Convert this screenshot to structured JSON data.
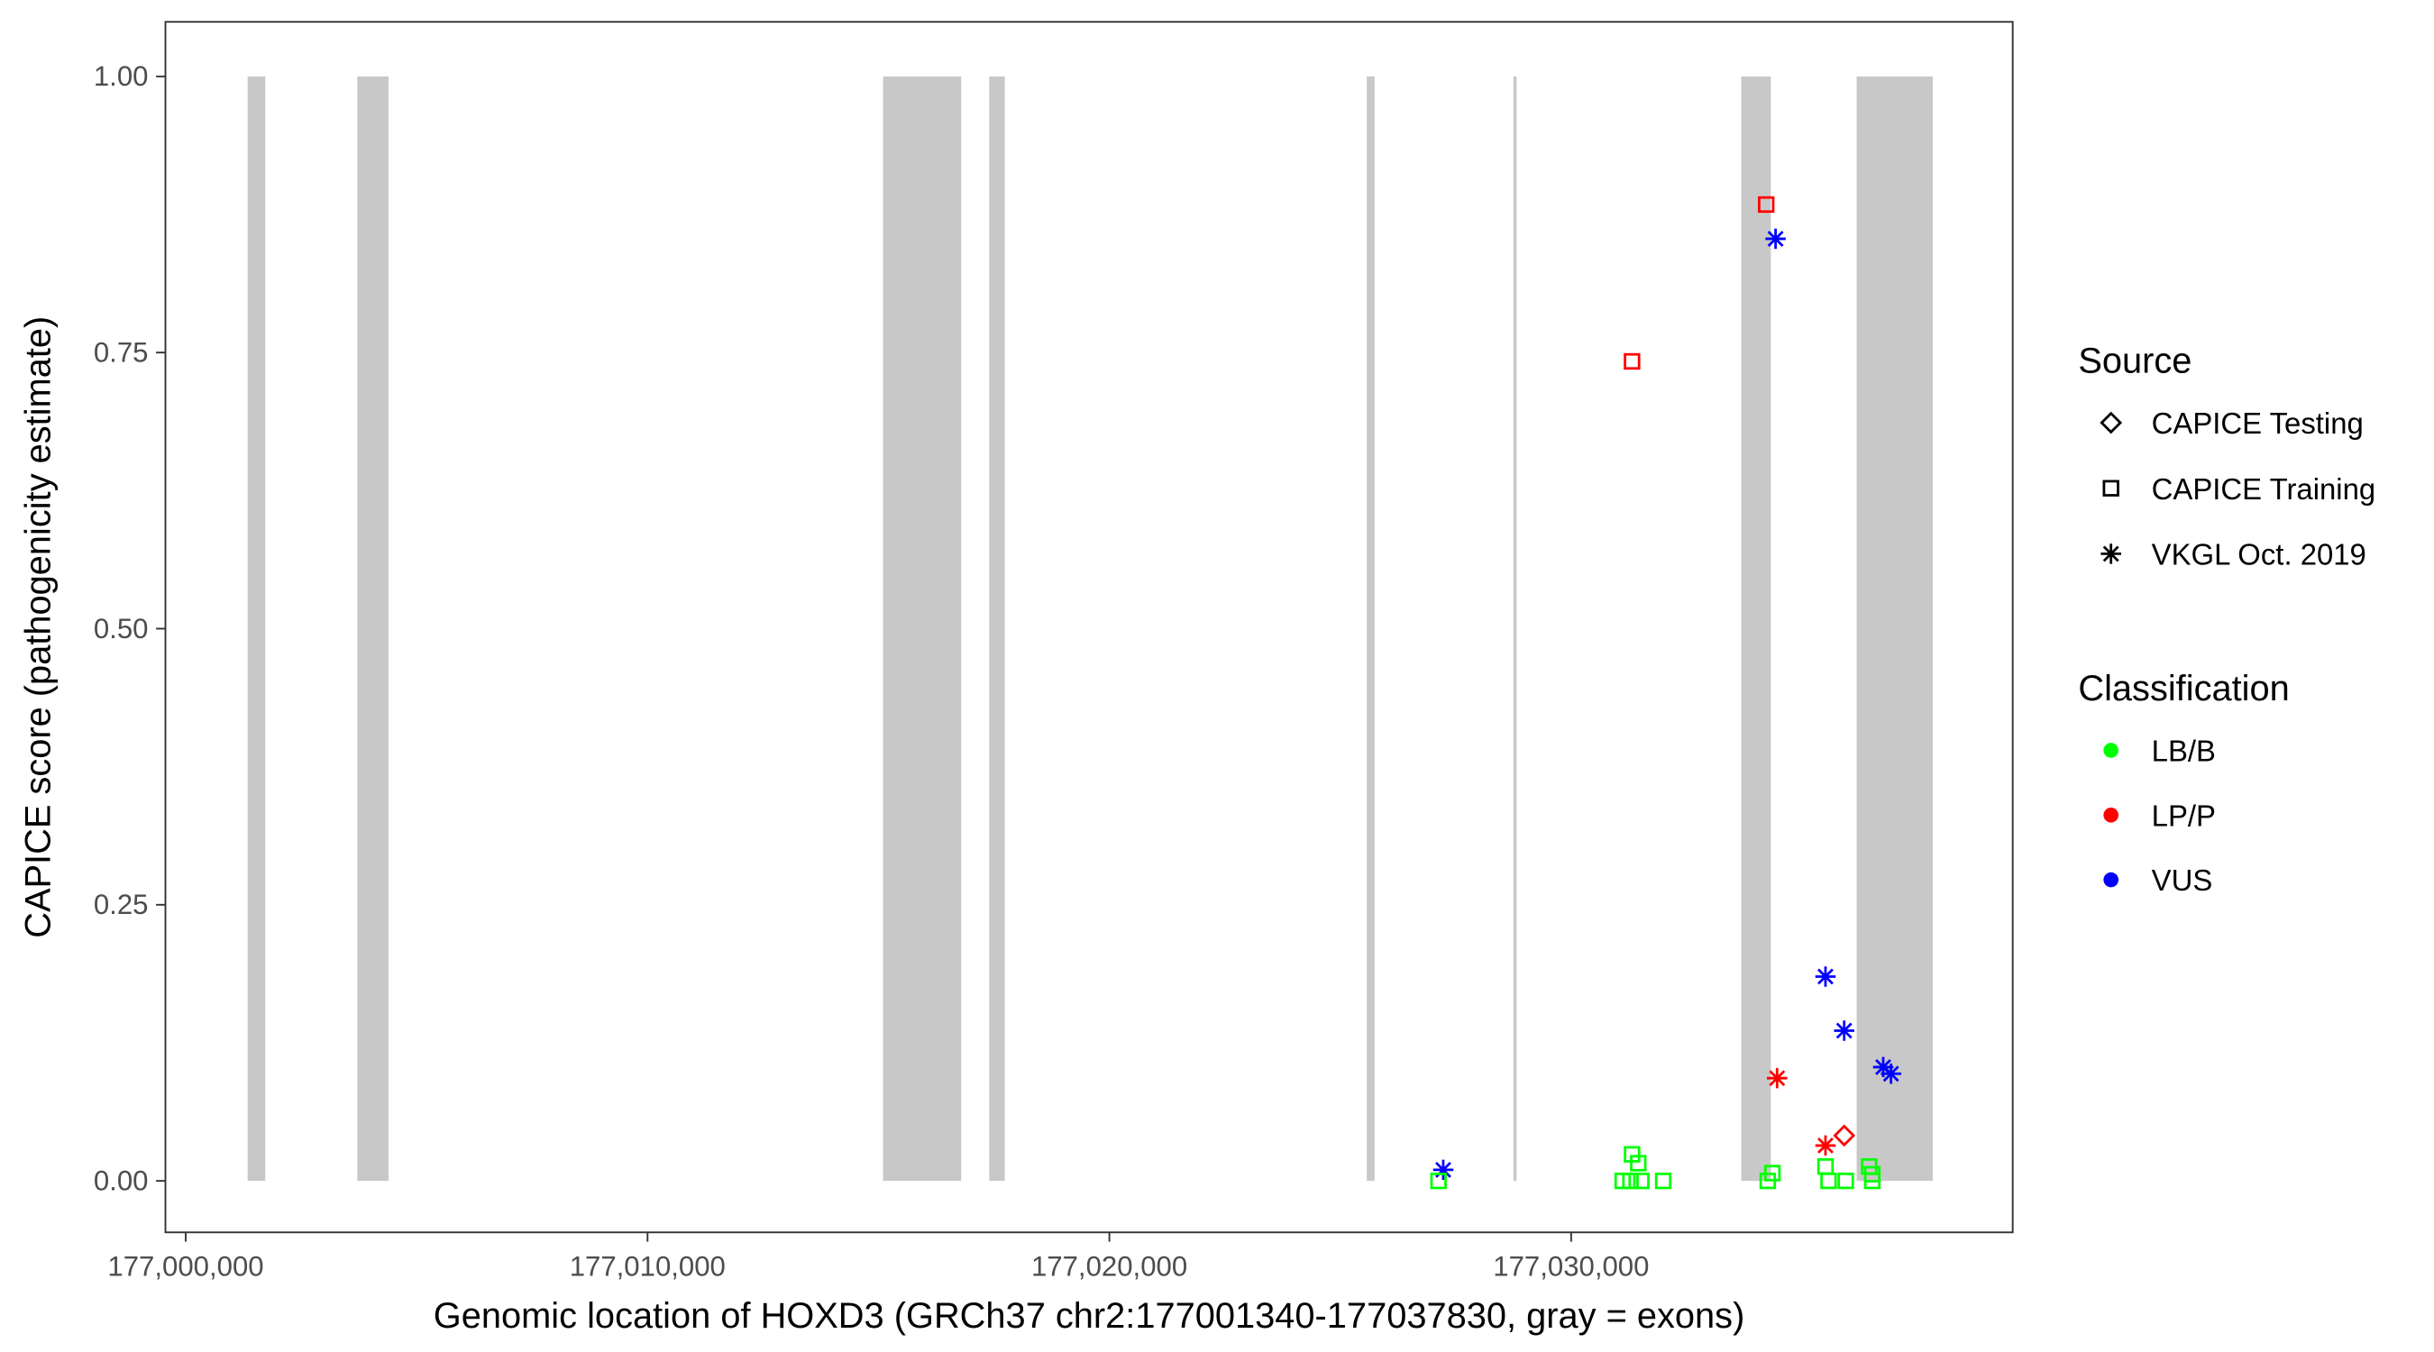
{
  "chart_data": {
    "type": "scatter",
    "title": "",
    "xlabel": "Genomic location of HOXD3 (GRCh37 chr2:177001340-177037830, gray = exons)",
    "ylabel": "CAPICE score (pathogenicity estimate)",
    "xlim": [
      176999550,
      177039400
    ],
    "ylim": [
      -0.046,
      1.05
    ],
    "x_ticks": [
      177000000,
      177010000,
      177020000,
      177030000
    ],
    "x_tick_labels": [
      "177,000,000",
      "177,010,000",
      "177,020,000",
      "177,030,000"
    ],
    "y_ticks": [
      0,
      0.25,
      0.5,
      0.75,
      1.0
    ],
    "y_tick_labels": [
      "0.00",
      "0.25",
      "0.50",
      "0.75",
      "1.00"
    ],
    "grid": false,
    "exon_color": "#C8C8C8",
    "exons": [
      [
        177001340,
        177001723
      ],
      [
        177003716,
        177004392
      ],
      [
        177015101,
        177016791
      ],
      [
        177017399,
        177017736
      ],
      [
        177025574,
        177025743
      ],
      [
        177028750,
        177028818
      ],
      [
        177033682,
        177034324
      ],
      [
        177036182,
        177037830
      ]
    ],
    "legend": {
      "placement": "right",
      "source_title": "Source",
      "source_items": [
        {
          "label": "CAPICE Testing",
          "shape": "diamond"
        },
        {
          "label": "CAPICE Training",
          "shape": "square"
        },
        {
          "label": "VKGL Oct. 2019",
          "shape": "asterisk"
        }
      ],
      "class_title": "Classification",
      "class_items": [
        {
          "label": "LB/B",
          "color": "#00FF00"
        },
        {
          "label": "LP/P",
          "color": "#FF0000"
        },
        {
          "label": "VUS",
          "color": "#0000FF"
        }
      ]
    },
    "points": [
      {
        "x": 177034223,
        "y": 0.884,
        "source": "CAPICE Training",
        "class": "LP/P"
      },
      {
        "x": 177034426,
        "y": 0.853,
        "source": "VKGL Oct. 2019",
        "class": "VUS"
      },
      {
        "x": 177031318,
        "y": 0.742,
        "source": "CAPICE Training",
        "class": "LP/P"
      },
      {
        "x": 177035507,
        "y": 0.185,
        "source": "VKGL Oct. 2019",
        "class": "VUS"
      },
      {
        "x": 177035912,
        "y": 0.136,
        "source": "VKGL Oct. 2019",
        "class": "VUS"
      },
      {
        "x": 177036757,
        "y": 0.103,
        "source": "VKGL Oct. 2019",
        "class": "VUS"
      },
      {
        "x": 177036926,
        "y": 0.097,
        "source": "VKGL Oct. 2019",
        "class": "VUS"
      },
      {
        "x": 177034459,
        "y": 0.093,
        "source": "VKGL Oct. 2019",
        "class": "LP/P"
      },
      {
        "x": 177035507,
        "y": 0.032,
        "source": "VKGL Oct. 2019",
        "class": "LP/P"
      },
      {
        "x": 177035912,
        "y": 0.041,
        "source": "CAPICE Testing",
        "class": "LP/P"
      },
      {
        "x": 177027230,
        "y": 0.01,
        "source": "VKGL Oct. 2019",
        "class": "VUS"
      },
      {
        "x": 177027128,
        "y": 0.0,
        "source": "CAPICE Training",
        "class": "LB/B"
      },
      {
        "x": 177031115,
        "y": 0.0,
        "source": "CAPICE Training",
        "class": "LB/B"
      },
      {
        "x": 177031318,
        "y": 0.024,
        "source": "CAPICE Training",
        "class": "LB/B"
      },
      {
        "x": 177031453,
        "y": 0.016,
        "source": "CAPICE Training",
        "class": "LB/B"
      },
      {
        "x": 177031520,
        "y": 0.0,
        "source": "CAPICE Training",
        "class": "LB/B"
      },
      {
        "x": 177031284,
        "y": 0.0,
        "source": "CAPICE Training",
        "class": "LB/B"
      },
      {
        "x": 177031993,
        "y": 0.0,
        "source": "CAPICE Training",
        "class": "LB/B"
      },
      {
        "x": 177034257,
        "y": 0.0,
        "source": "CAPICE Training",
        "class": "LB/B"
      },
      {
        "x": 177034358,
        "y": 0.007,
        "source": "CAPICE Training",
        "class": "LB/B"
      },
      {
        "x": 177035507,
        "y": 0.013,
        "source": "CAPICE Training",
        "class": "LB/B"
      },
      {
        "x": 177035574,
        "y": 0.0,
        "source": "CAPICE Training",
        "class": "LB/B"
      },
      {
        "x": 177035946,
        "y": 0.0,
        "source": "CAPICE Training",
        "class": "LB/B"
      },
      {
        "x": 177036453,
        "y": 0.013,
        "source": "CAPICE Training",
        "class": "LB/B"
      },
      {
        "x": 177036520,
        "y": 0.006,
        "source": "CAPICE Training",
        "class": "LB/B"
      },
      {
        "x": 177036520,
        "y": 0.0,
        "source": "CAPICE Training",
        "class": "LB/B"
      }
    ]
  }
}
